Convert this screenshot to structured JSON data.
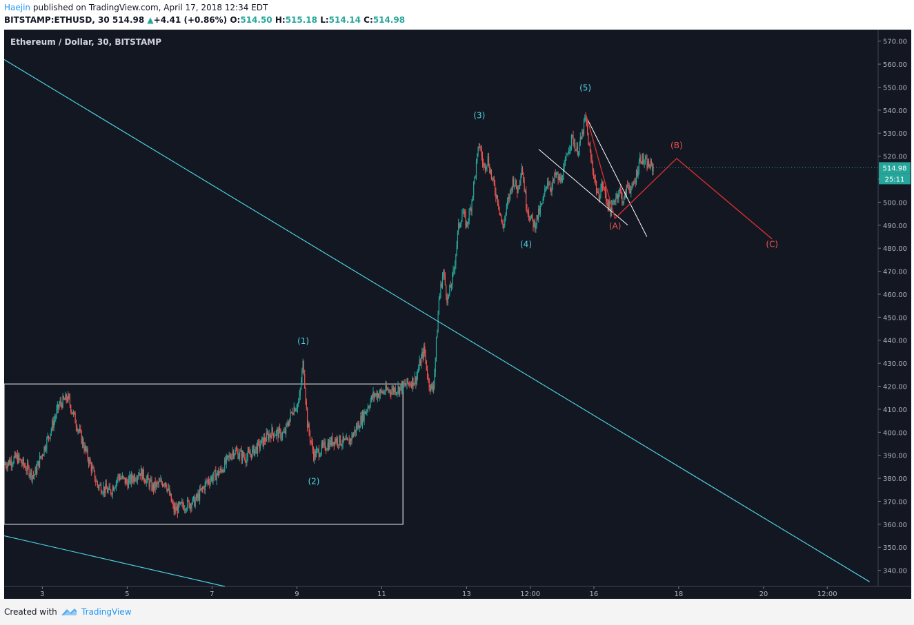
{
  "header": {
    "author": "Haejin",
    "published_text": "published on TradingView.com, April 17, 2018 12:34 EDT",
    "symbol": "BITSTAMP:ETHUSD, 30",
    "price": "514.98",
    "change_arrow": "▲",
    "change": "+4.41 (+0.86%)",
    "o_label": "O:",
    "o_val": "514.50",
    "h_label": "H:",
    "h_val": "515.18",
    "l_label": "L:",
    "l_val": "514.14",
    "c_label": "C:",
    "c_val": "514.98"
  },
  "footer": {
    "created_with": "Created with",
    "brand": "TradingView"
  },
  "chart_data": {
    "type": "candlestick",
    "title": "Ethereum / Dollar, 30, BITSTAMP",
    "ylim": [
      333,
      575
    ],
    "xlim": [
      2.1,
      22.7
    ],
    "y_ticks": [
      340,
      350,
      360,
      370,
      380,
      390,
      400,
      410,
      420,
      430,
      440,
      450,
      460,
      470,
      480,
      490,
      500,
      510,
      520,
      530,
      540,
      550,
      560,
      570
    ],
    "x_ticks": [
      {
        "x": 3,
        "label": "3"
      },
      {
        "x": 5,
        "label": "5"
      },
      {
        "x": 7,
        "label": "7"
      },
      {
        "x": 9,
        "label": "9"
      },
      {
        "x": 11,
        "label": "11"
      },
      {
        "x": 13,
        "label": "13"
      },
      {
        "x": 14.5,
        "label": "12:00"
      },
      {
        "x": 16,
        "label": "16"
      },
      {
        "x": 18,
        "label": "18"
      },
      {
        "x": 20,
        "label": "20"
      },
      {
        "x": 21.5,
        "label": "12:00"
      }
    ],
    "price_path": [
      [
        2.1,
        386
      ],
      [
        2.4,
        389
      ],
      [
        2.8,
        381
      ],
      [
        3.2,
        401
      ],
      [
        3.4,
        412
      ],
      [
        3.6,
        415
      ],
      [
        3.8,
        404
      ],
      [
        4.0,
        393
      ],
      [
        4.3,
        377
      ],
      [
        4.6,
        374
      ],
      [
        4.8,
        381
      ],
      [
        5.0,
        378
      ],
      [
        5.3,
        383
      ],
      [
        5.6,
        376
      ],
      [
        5.9,
        379
      ],
      [
        6.1,
        366
      ],
      [
        6.3,
        368
      ],
      [
        6.6,
        370
      ],
      [
        6.9,
        379
      ],
      [
        7.2,
        383
      ],
      [
        7.5,
        392
      ],
      [
        7.8,
        389
      ],
      [
        8.1,
        394
      ],
      [
        8.4,
        400
      ],
      [
        8.7,
        399
      ],
      [
        8.9,
        410
      ],
      [
        9.05,
        413
      ],
      [
        9.15,
        431
      ],
      [
        9.25,
        403
      ],
      [
        9.4,
        390
      ],
      [
        9.6,
        393
      ],
      [
        9.9,
        397
      ],
      [
        10.2,
        395
      ],
      [
        10.5,
        405
      ],
      [
        10.8,
        416
      ],
      [
        11.1,
        418
      ],
      [
        11.4,
        419
      ],
      [
        11.6,
        421
      ],
      [
        11.8,
        423
      ],
      [
        11.9,
        430
      ],
      [
        12.0,
        436
      ],
      [
        12.1,
        422
      ],
      [
        12.2,
        418
      ],
      [
        12.25,
        428
      ],
      [
        12.35,
        458
      ],
      [
        12.45,
        470
      ],
      [
        12.55,
        457
      ],
      [
        12.7,
        470
      ],
      [
        12.8,
        488
      ],
      [
        12.9,
        496
      ],
      [
        13.0,
        490
      ],
      [
        13.1,
        498
      ],
      [
        13.2,
        512
      ],
      [
        13.3,
        526
      ],
      [
        13.4,
        515
      ],
      [
        13.5,
        519
      ],
      [
        13.6,
        510
      ],
      [
        13.75,
        500
      ],
      [
        13.85,
        488
      ],
      [
        13.95,
        498
      ],
      [
        14.1,
        510
      ],
      [
        14.2,
        505
      ],
      [
        14.3,
        516
      ],
      [
        14.4,
        500
      ],
      [
        14.5,
        493
      ],
      [
        14.6,
        490
      ],
      [
        14.7,
        495
      ],
      [
        14.8,
        500
      ],
      [
        14.9,
        510
      ],
      [
        15.0,
        506
      ],
      [
        15.1,
        512
      ],
      [
        15.2,
        509
      ],
      [
        15.3,
        514
      ],
      [
        15.4,
        524
      ],
      [
        15.5,
        528
      ],
      [
        15.6,
        522
      ],
      [
        15.7,
        527
      ],
      [
        15.8,
        537
      ],
      [
        15.9,
        522
      ],
      [
        16.0,
        512
      ],
      [
        16.1,
        502
      ],
      [
        16.2,
        508
      ],
      [
        16.3,
        501
      ],
      [
        16.4,
        496
      ],
      [
        16.5,
        502
      ],
      [
        16.6,
        505
      ],
      [
        16.7,
        500
      ],
      [
        16.8,
        508
      ],
      [
        16.9,
        505
      ],
      [
        17.0,
        512
      ],
      [
        17.1,
        520
      ],
      [
        17.2,
        517
      ],
      [
        17.3,
        516
      ],
      [
        17.4,
        514.98
      ]
    ],
    "annotations": {
      "wave_labels_cyan": [
        {
          "text": "(1)",
          "x": 9.15,
          "y": 438.5
        },
        {
          "text": "(2)",
          "x": 9.4,
          "y": 377.5
        },
        {
          "text": "(3)",
          "x": 13.3,
          "y": 536.5
        },
        {
          "text": "(4)",
          "x": 14.4,
          "y": 480.5
        },
        {
          "text": "(5)",
          "x": 15.8,
          "y": 548.5
        }
      ],
      "wave_labels_red": [
        {
          "text": "(A)",
          "x": 16.5,
          "y": 488.5
        },
        {
          "text": "(B)",
          "x": 17.95,
          "y": 523.5
        },
        {
          "text": "(C)",
          "x": 20.2,
          "y": 480.5
        }
      ],
      "red_projection": [
        [
          15.8,
          539
        ],
        [
          16.5,
          493
        ],
        [
          17.95,
          519
        ],
        [
          20.2,
          484
        ]
      ],
      "cyan_trendlines": [
        [
          [
            2.1,
            562
          ],
          [
            22.5,
            335
          ]
        ],
        [
          [
            2.1,
            355
          ],
          [
            7.3,
            333
          ]
        ]
      ],
      "white_wedge": [
        [
          [
            14.7,
            523
          ],
          [
            16.8,
            490
          ]
        ],
        [
          [
            15.85,
            536
          ],
          [
            17.25,
            485
          ]
        ]
      ],
      "white_box": {
        "x0": 2.1,
        "x1": 11.5,
        "y0": 360,
        "y1": 421
      }
    },
    "price_label": "514.98",
    "countdown_label": "25:11"
  }
}
